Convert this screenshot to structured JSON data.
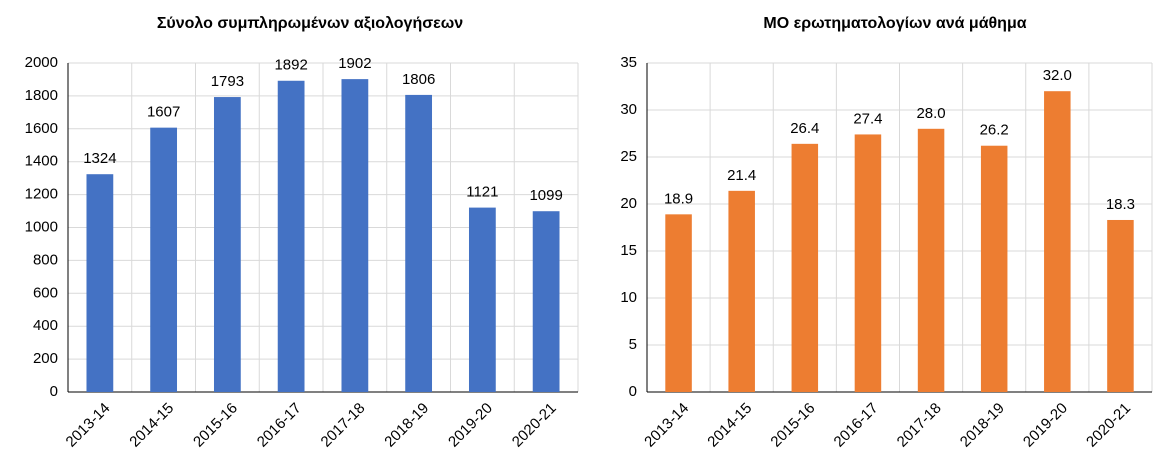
{
  "chart_data": [
    {
      "type": "bar",
      "title": "Σύνολο συμπληρωμένων αξιολογήσεων",
      "categories": [
        "2013-14",
        "2014-15",
        "2015-16",
        "2016-17",
        "2017-18",
        "2018-19",
        "2019-20",
        "2020-21"
      ],
      "values": [
        1324,
        1607,
        1793,
        1892,
        1902,
        1806,
        1121,
        1099
      ],
      "color": "#4472c4",
      "ylim": [
        0,
        2000
      ],
      "yticks": [
        0,
        200,
        400,
        600,
        800,
        1000,
        1200,
        1400,
        1600,
        1800,
        2000
      ],
      "grid": true
    },
    {
      "type": "bar",
      "title": "ΜΟ ερωτηματολογίων ανά μάθημα",
      "categories": [
        "2013-14",
        "2014-15",
        "2015-16",
        "2016-17",
        "2017-18",
        "2018-19",
        "2019-20",
        "2020-21"
      ],
      "values": [
        18.9,
        21.4,
        26.4,
        27.4,
        28.0,
        26.2,
        32.0,
        18.3
      ],
      "value_labels": [
        "18.9",
        "21.4",
        "26.4",
        "27.4",
        "28.0",
        "26.2",
        "32.0",
        "18.3"
      ],
      "color": "#ed7d31",
      "ylim": [
        0,
        35
      ],
      "yticks": [
        0,
        5,
        10,
        15,
        20,
        25,
        30,
        35
      ],
      "grid": true
    }
  ]
}
